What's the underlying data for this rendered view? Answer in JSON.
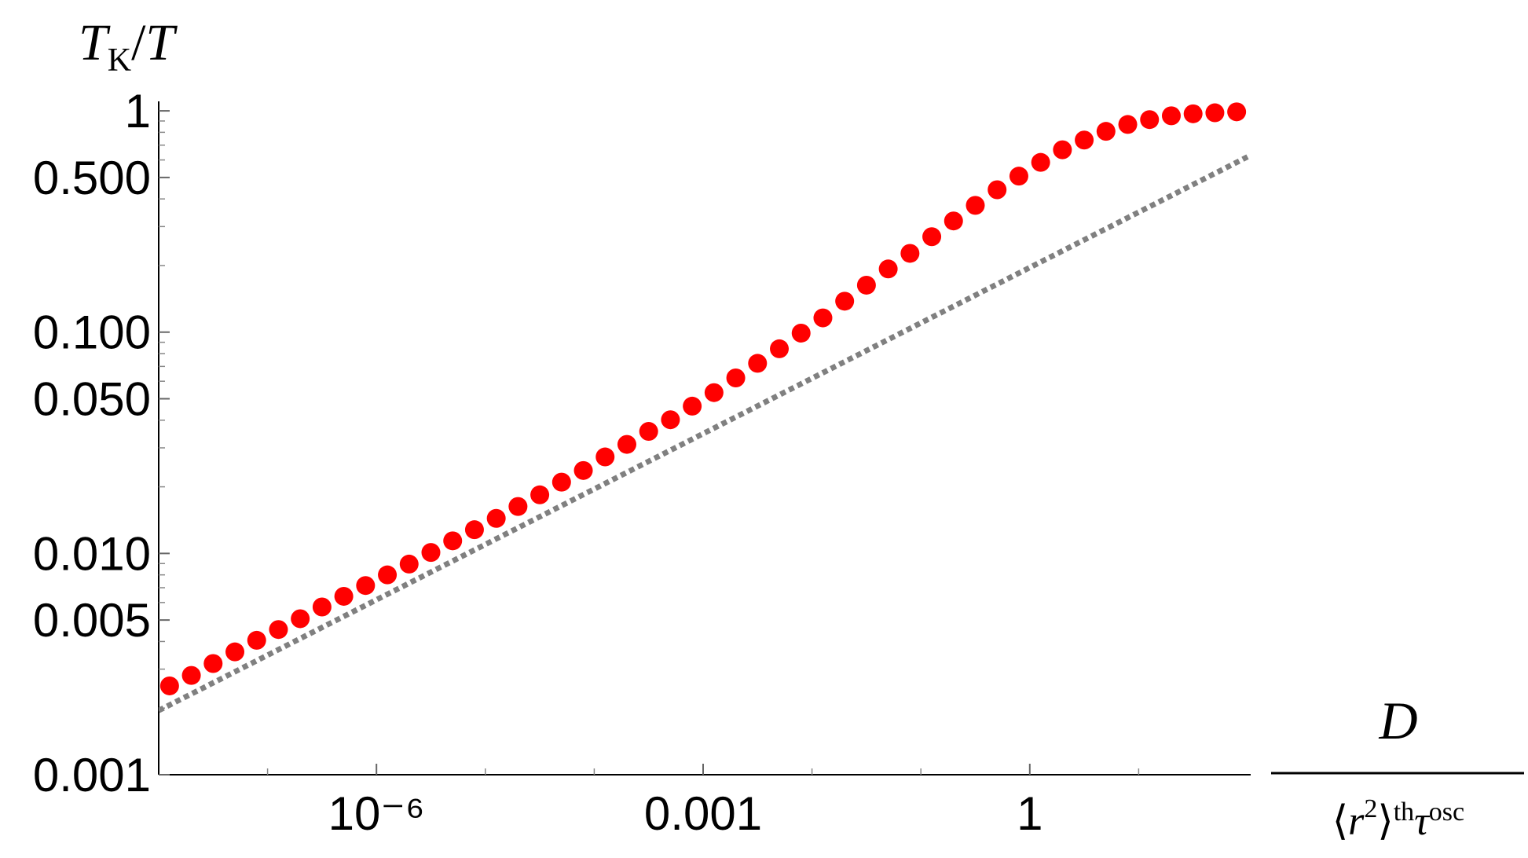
{
  "chart_data": {
    "type": "scatter",
    "ylabel": [
      "T",
      "K",
      "/",
      "T"
    ],
    "xlabel": {
      "numerator": "D",
      "denominator": [
        "⟨",
        "r",
        "2",
        "⟩",
        "th",
        "τ",
        "osc"
      ]
    },
    "log_x": true,
    "log_y": true,
    "xlim": [
      1e-08,
      100
    ],
    "ylim": [
      0.001,
      1.086
    ],
    "xticks": [
      {
        "value": 1e-06,
        "label": "10⁻⁶"
      },
      0.001,
      1
    ],
    "xminorticks": [
      1e-07,
      1e-05,
      0.0001,
      0.01,
      0.1,
      10
    ],
    "yticks": [
      0.001,
      0.005,
      {
        "value": 0.01,
        "label": "0.010"
      },
      {
        "value": 0.05,
        "label": "0.050"
      },
      {
        "value": 0.1,
        "label": "0.100"
      },
      {
        "value": 0.5,
        "label": "0.500"
      },
      1
    ],
    "yminorticks": [
      0.002,
      0.003,
      0.004,
      0.006,
      0.007,
      0.008,
      0.009,
      0.02,
      0.03,
      0.04,
      0.06,
      0.07,
      0.08,
      0.09,
      0.2,
      0.3,
      0.4,
      0.6,
      0.7,
      0.8,
      0.9
    ],
    "series": [
      {
        "kind": "points",
        "color": "#ff0000",
        "x": [
          1.259e-08,
          1.995e-08,
          3.162e-08,
          5.012e-08,
          7.943e-08,
          1.259e-07,
          1.995e-07,
          3.162e-07,
          5.012e-07,
          7.943e-07,
          1.259e-06,
          1.995e-06,
          3.162e-06,
          5.012e-06,
          7.943e-06,
          1.259e-05,
          1.995e-05,
          3.162e-05,
          5.012e-05,
          7.943e-05,
          0.0001259,
          0.0001995,
          0.0003162,
          0.0005012,
          0.0007943,
          0.001259,
          0.001995,
          0.003162,
          0.005012,
          0.007943,
          0.01259,
          0.01995,
          0.03162,
          0.05012,
          0.07943,
          0.1259,
          0.1995,
          0.3162,
          0.5012,
          0.7943,
          1.259,
          1.995,
          3.162,
          5.012,
          7.943,
          12.59,
          19.95,
          31.62,
          50.12,
          79.43
        ],
        "values": [
          0.00252,
          0.00281,
          0.00318,
          0.00359,
          0.00405,
          0.00453,
          0.00507,
          0.00573,
          0.0064,
          0.00716,
          0.008,
          0.00895,
          0.0101,
          0.0114,
          0.0128,
          0.0144,
          0.0163,
          0.0184,
          0.021,
          0.0237,
          0.0273,
          0.0311,
          0.0356,
          0.0402,
          0.0463,
          0.0533,
          0.0621,
          0.0723,
          0.0841,
          0.099,
          0.116,
          0.138,
          0.163,
          0.193,
          0.227,
          0.27,
          0.318,
          0.374,
          0.44,
          0.507,
          0.585,
          0.667,
          0.738,
          0.808,
          0.868,
          0.913,
          0.95,
          0.97,
          0.98,
          0.99
        ]
      },
      {
        "kind": "dotted-line",
        "color": "#808080",
        "x": [
          1e-08,
          100
        ],
        "values": [
          0.00195,
          0.62
        ]
      }
    ]
  }
}
